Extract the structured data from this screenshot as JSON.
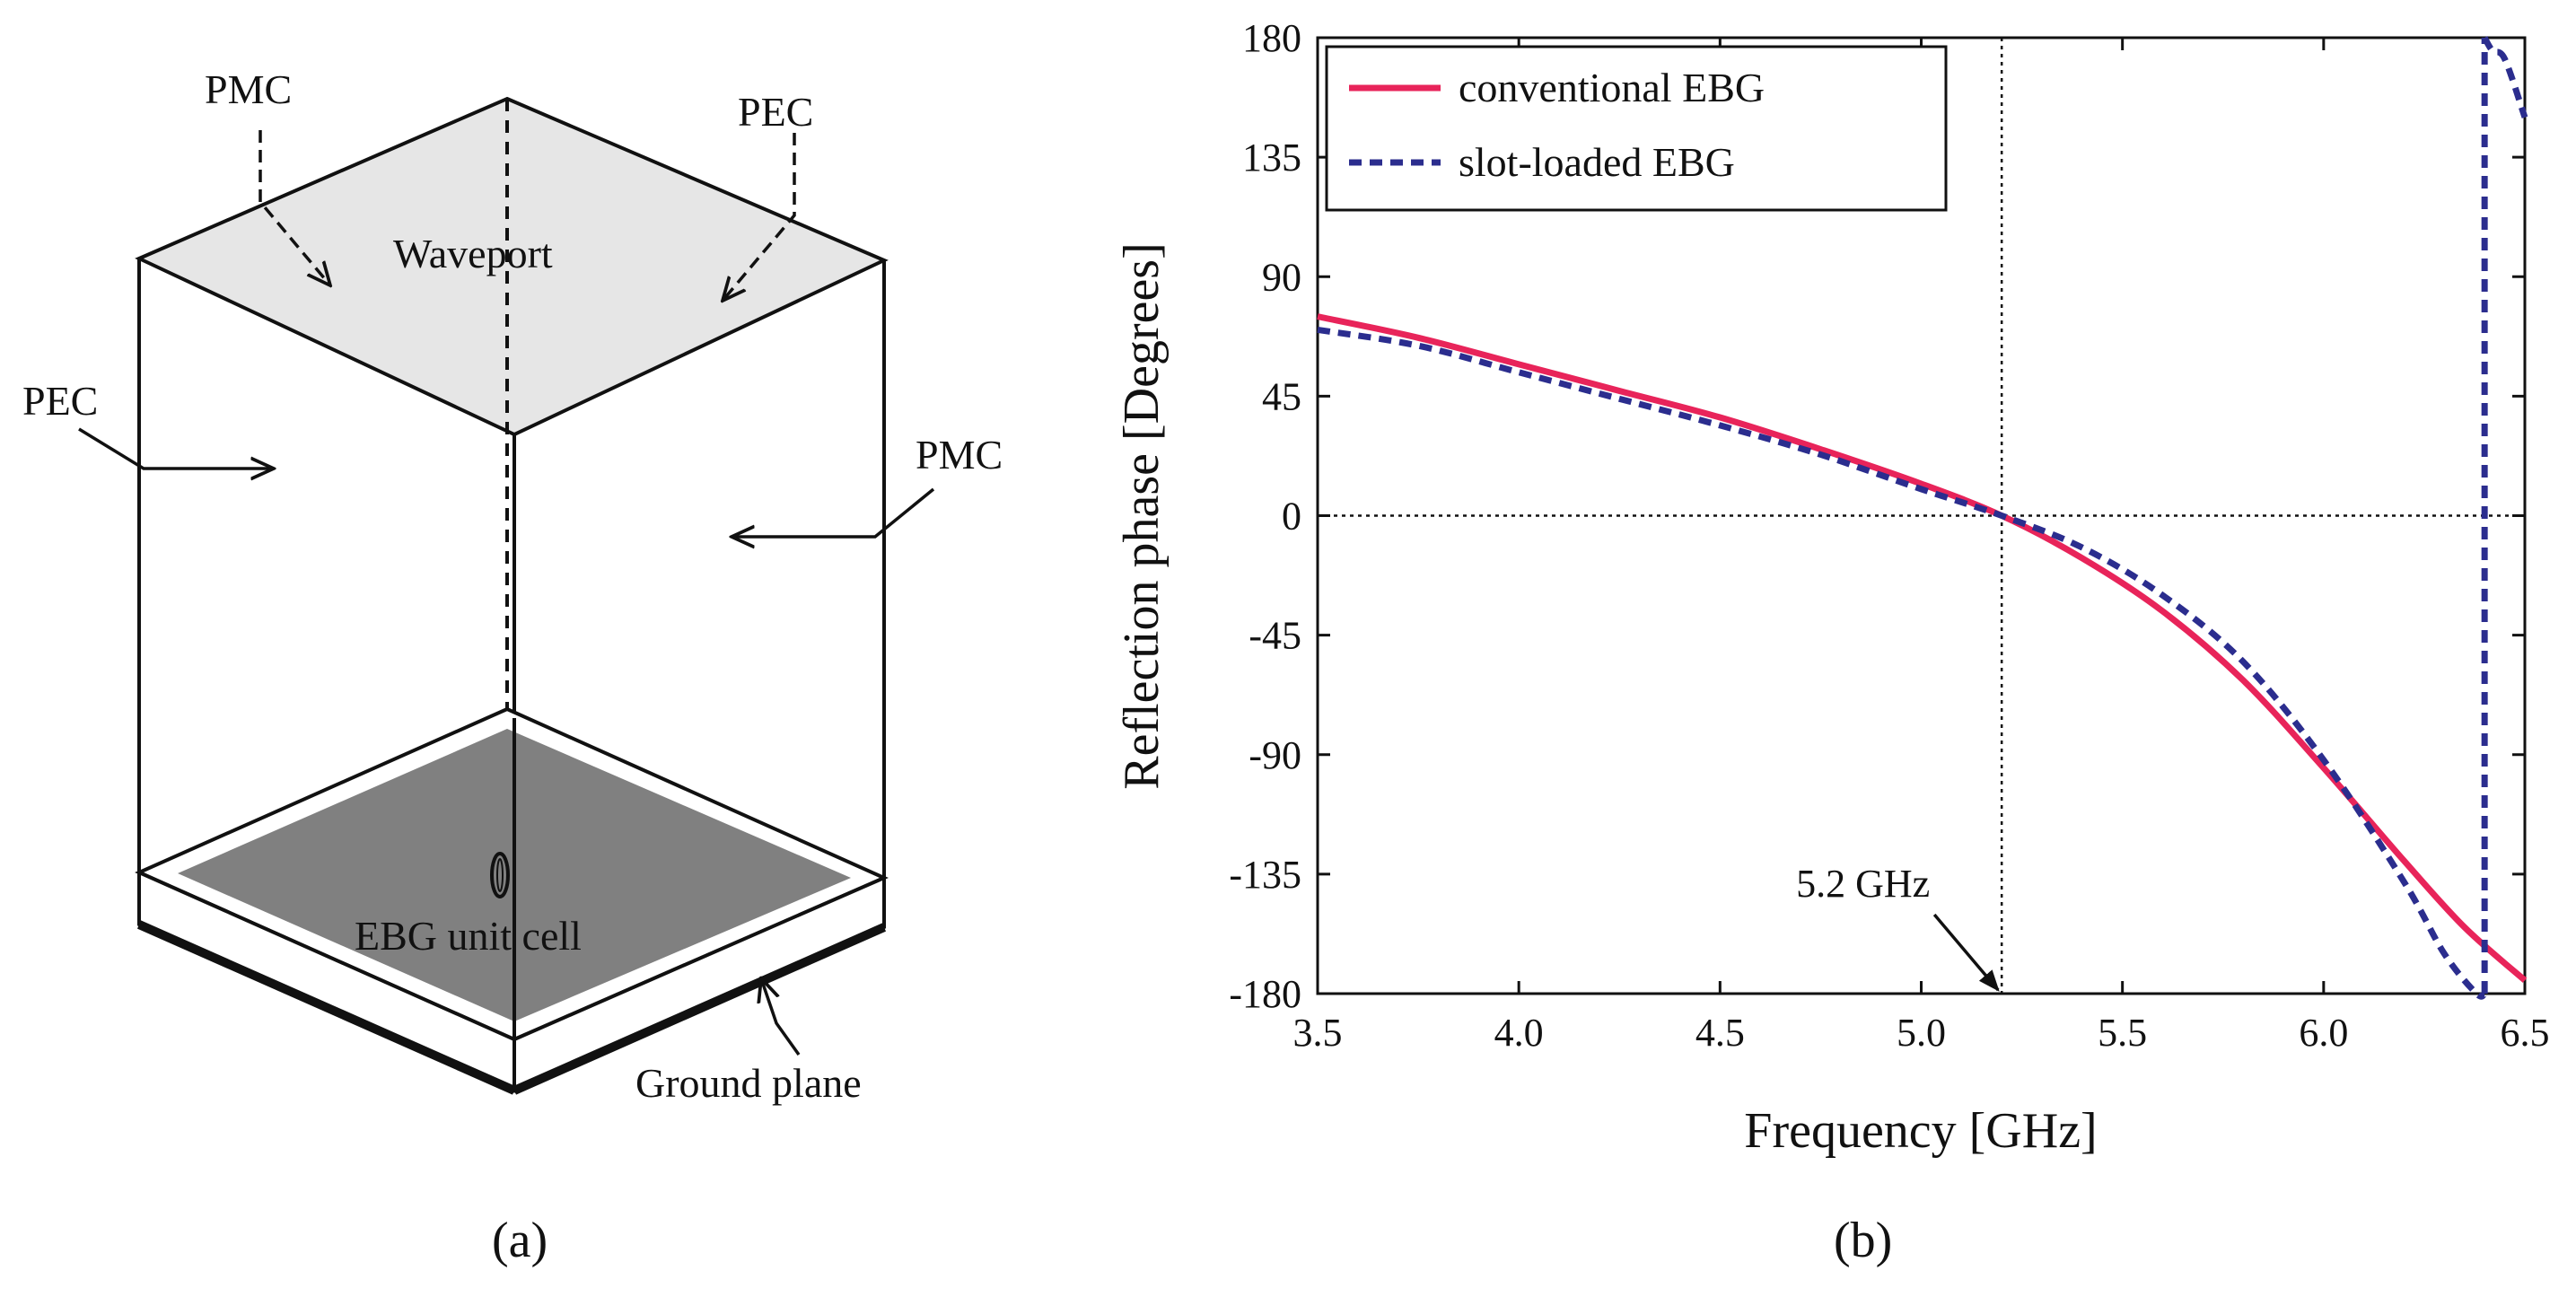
{
  "diagram": {
    "labels": {
      "pmc_top": "PMC",
      "pec_top": "PEC",
      "waveport": "Waveport",
      "pec_left": "PEC",
      "pmc_right": "PMC",
      "ebg_unit_cell": "EBG unit cell",
      "ground_plane": "Ground plane"
    },
    "colors": {
      "waveport_face": "#e6e6e6",
      "ebg_patch": "#808080",
      "line": "#111111"
    }
  },
  "captions": {
    "a": "(a)",
    "b": "(b)"
  },
  "chart_data": {
    "type": "line",
    "title": "",
    "xlabel": "Frequency [GHz]",
    "ylabel": "Reflection phase [Degrees]",
    "xlim": [
      3.5,
      6.5
    ],
    "ylim": [
      -180,
      180
    ],
    "xticks": [
      3.5,
      4.0,
      4.5,
      5.0,
      5.5,
      6.0,
      6.5
    ],
    "xtick_labels": [
      "3.5",
      "4.0",
      "4.5",
      "5.0",
      "5.5",
      "6.0",
      "6.5"
    ],
    "yticks": [
      180,
      135,
      90,
      45,
      0,
      -45,
      -90,
      -135,
      -180
    ],
    "ytick_labels": [
      "180",
      "135",
      "90",
      "45",
      "0",
      "-45",
      "-90",
      "-135",
      "-180"
    ],
    "grid": false,
    "legend_position": "top-left",
    "reference_lines": {
      "x": 5.2,
      "y": 0
    },
    "annotation": {
      "text": "5.2 GHz",
      "x": 5.2,
      "y": -180
    },
    "series": [
      {
        "name": "conventional EBG",
        "style": "solid",
        "color": "#e8245a",
        "x": [
          3.5,
          3.75,
          4.0,
          4.25,
          4.5,
          4.75,
          5.0,
          5.2,
          5.4,
          5.6,
          5.8,
          6.0,
          6.2,
          6.35,
          6.5
        ],
        "y": [
          75,
          67,
          57,
          47,
          37,
          25,
          12,
          0,
          -16,
          -36,
          -62,
          -95,
          -130,
          -155,
          -175
        ]
      },
      {
        "name": "slot-loaded EBG",
        "style": "dashed",
        "color": "#2b2d8e",
        "x": [
          3.5,
          3.75,
          4.0,
          4.25,
          4.5,
          4.75,
          5.0,
          5.2,
          5.4,
          5.6,
          5.8,
          6.0,
          6.2,
          6.3,
          6.38,
          6.4,
          6.4,
          6.42,
          6.45,
          6.5
        ],
        "y": [
          70,
          64,
          54,
          44,
          34,
          23,
          10,
          0,
          -12,
          -30,
          -55,
          -92,
          -138,
          -165,
          -180,
          -180,
          180,
          175,
          172,
          150
        ]
      }
    ]
  }
}
